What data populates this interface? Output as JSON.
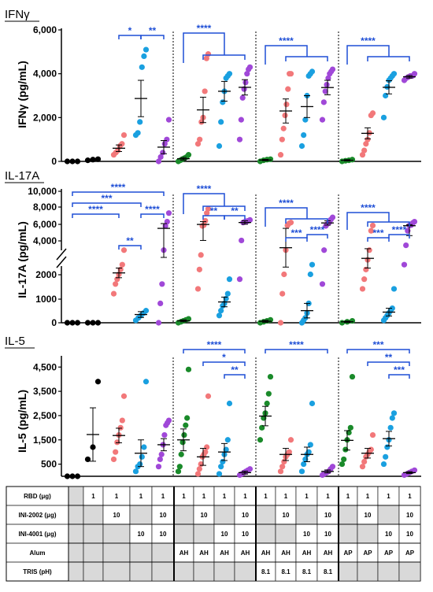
{
  "colors": {
    "black": "#000000",
    "pink": "#f2787a",
    "blue": "#1aa0e0",
    "purple": "#a048d8",
    "green": "#1a8a2a",
    "sig": "#1f4fd6",
    "shade": "#d9d9d9"
  },
  "chart_data": [
    {
      "type": "scatter",
      "title": "IFNγ",
      "ylabel": "IFNγ (pg/mL)",
      "yticks": [
        "0",
        "2,000",
        "4,000",
        "6,000"
      ],
      "ylim": [
        0,
        6000
      ],
      "groups": [
        {
          "color": "black",
          "values": [
            0,
            0,
            0
          ]
        },
        {
          "color": "black",
          "values": [
            50,
            80,
            100
          ]
        },
        {
          "color": "pink",
          "values": [
            300,
            400,
            500,
            700,
            800,
            1200
          ]
        },
        {
          "color": "blue",
          "values": [
            1200,
            1300,
            1800,
            4300,
            4800,
            5100
          ]
        },
        {
          "color": "purple",
          "values": [
            0,
            200,
            400,
            800,
            1000,
            1900
          ]
        },
        {
          "color": "green",
          "values": [
            0,
            50,
            100,
            150,
            200,
            300
          ]
        },
        {
          "color": "pink",
          "values": [
            800,
            1000,
            1800,
            2000,
            3200,
            4700,
            4900
          ]
        },
        {
          "color": "blue",
          "values": [
            700,
            1800,
            2700,
            3200,
            3800,
            3900,
            4000
          ]
        },
        {
          "color": "purple",
          "values": [
            1000,
            1900,
            2900,
            3300,
            3600,
            4000,
            4200,
            4300
          ]
        },
        {
          "color": "green",
          "values": [
            0,
            50,
            80,
            100
          ]
        },
        {
          "color": "pink",
          "values": [
            300,
            1000,
            1500,
            2100,
            2600,
            3300,
            4000,
            4000
          ]
        },
        {
          "color": "blue",
          "values": [
            700,
            1200,
            1900,
            3000,
            3900,
            4000,
            4100
          ]
        },
        {
          "color": "purple",
          "values": [
            1900,
            2700,
            3200,
            3500,
            3800,
            4000,
            4100,
            4200
          ]
        },
        {
          "color": "green",
          "values": [
            0,
            30,
            50,
            80
          ]
        },
        {
          "color": "pink",
          "values": [
            300,
            500,
            800,
            1000,
            1300,
            2100,
            2200
          ]
        },
        {
          "color": "blue",
          "values": [
            2000,
            3000,
            3400,
            3700,
            3800,
            3900,
            4000
          ]
        },
        {
          "color": "purple",
          "values": [
            3700,
            3800,
            3850,
            3900,
            3900,
            4000
          ]
        }
      ],
      "means": [
        0,
        70,
        600,
        2870,
        650,
        120,
        2350,
        3200,
        3380,
        60,
        2300,
        2500,
        3370,
        50,
        1280,
        3380,
        3860
      ],
      "sems": [
        0,
        30,
        150,
        830,
        300,
        60,
        580,
        450,
        350,
        30,
        550,
        500,
        330,
        30,
        250,
        300,
        60
      ],
      "brackets": [
        {
          "from": 2,
          "to": 3,
          "label": "*"
        },
        {
          "from": 3,
          "to": 4,
          "label": "**"
        },
        {
          "from": 5,
          "to": [
            6,
            7,
            8
          ],
          "label": "****"
        },
        {
          "from": 9,
          "to": [
            10,
            11,
            12
          ],
          "label": "****"
        },
        {
          "from": 13,
          "to": [
            14,
            15,
            16
          ],
          "label": "****"
        }
      ]
    },
    {
      "type": "scatter",
      "title": "IL-17A",
      "ylabel": "IL-17A (pg/mL)",
      "yticks": [
        "0",
        "1000",
        "2000",
        "4,000",
        "6,000",
        "8,000",
        "10,000"
      ],
      "axis_break": true,
      "groups": [
        {
          "color": "black",
          "values": [
            0,
            0,
            0
          ]
        },
        {
          "color": "black",
          "values": [
            0,
            0,
            0
          ]
        },
        {
          "color": "pink",
          "values": [
            600,
            800,
            900,
            1000,
            1100,
            1200,
            1500
          ]
        },
        {
          "color": "blue",
          "values": [
            50,
            100,
            150,
            200,
            250
          ]
        },
        {
          "color": "purple",
          "values": [
            0,
            400,
            800,
            1500,
            2000,
            3000,
            5000
          ]
        },
        {
          "color": "green",
          "values": [
            0,
            20,
            40,
            60,
            80
          ]
        },
        {
          "color": "pink",
          "values": [
            700,
            1100,
            1400,
            2000,
            2200,
            3200,
            5000,
            6000
          ]
        },
        {
          "color": "blue",
          "values": [
            150,
            250,
            350,
            400,
            500,
            600,
            900
          ]
        },
        {
          "color": "purple",
          "values": [
            900,
            1700,
            2800,
            3000,
            3100,
            3200,
            3400
          ]
        },
        {
          "color": "green",
          "values": [
            0,
            20,
            40,
            60
          ]
        },
        {
          "color": "pink",
          "values": [
            0,
            600,
            1000,
            1500,
            2100,
            2600,
            2800
          ]
        },
        {
          "color": "blue",
          "values": [
            0,
            50,
            100,
            200,
            400,
            1000,
            1200
          ]
        },
        {
          "color": "purple",
          "values": [
            800,
            1500,
            2000,
            2500,
            2800,
            3500,
            4000
          ]
        },
        {
          "color": "green",
          "values": [
            0,
            20,
            40
          ]
        },
        {
          "color": "pink",
          "values": [
            700,
            900,
            1100,
            1300,
            1500,
            1900,
            2100
          ]
        },
        {
          "color": "blue",
          "values": [
            50,
            100,
            150,
            200,
            250,
            300,
            700
          ]
        },
        {
          "color": "purple",
          "values": [
            1200,
            1600,
            1900,
            2100,
            2200,
            2700,
            3000
          ]
        }
      ],
      "means": [
        0,
        0,
        1030,
        170,
        1950,
        40,
        2350,
        430,
        2800,
        30,
        1550,
        250,
        2700,
        20,
        1330,
        220,
        2050
      ],
      "sems": [
        0,
        0,
        100,
        60,
        600,
        20,
        650,
        100,
        400,
        20,
        400,
        150,
        500,
        15,
        200,
        80,
        250
      ],
      "brackets": [
        {
          "from": 0,
          "to": 2,
          "label": "****"
        },
        {
          "from": 0,
          "to": 3,
          "label": "***"
        },
        {
          "from": 0,
          "to": 4,
          "label": "****"
        },
        {
          "from": 2,
          "to": 3,
          "label": "**"
        },
        {
          "from": 3,
          "to": 4,
          "label": "****"
        },
        {
          "from": 5,
          "to": [
            6,
            7,
            8
          ],
          "label": "****"
        },
        {
          "from": 6,
          "to": 7,
          "label": "**"
        },
        {
          "from": 7,
          "to": 8,
          "label": "**"
        },
        {
          "from": 9,
          "to": [
            10,
            11,
            12
          ],
          "label": "****"
        },
        {
          "from": 10,
          "to": 11,
          "label": "***"
        },
        {
          "from": 11,
          "to": 12,
          "label": "****"
        },
        {
          "from": 13,
          "to": [
            14,
            15,
            16
          ],
          "label": "****"
        },
        {
          "from": 14,
          "to": 15,
          "label": "***"
        },
        {
          "from": 15,
          "to": 16,
          "label": "****"
        }
      ]
    },
    {
      "type": "scatter",
      "title": "IL-5",
      "ylabel": "IL-5 (pg/mL)",
      "yticks": [
        "500",
        "1,500",
        "2,500",
        "3,500",
        "4,500"
      ],
      "ylim": [
        0,
        4800
      ],
      "groups": [
        {
          "color": "black",
          "values": [
            0,
            0,
            0
          ]
        },
        {
          "color": "black",
          "values": [
            700,
            1200,
            3900
          ]
        },
        {
          "color": "pink",
          "values": [
            700,
            1000,
            1400,
            1700,
            2000,
            2300,
            3300
          ]
        },
        {
          "color": "blue",
          "values": [
            200,
            400,
            500,
            800,
            1200,
            3900
          ]
        },
        {
          "color": "purple",
          "values": [
            400,
            700,
            900,
            1300,
            1700,
            2100,
            2200,
            2300
          ]
        },
        {
          "color": "green",
          "values": [
            200,
            400,
            900,
            1400,
            1700,
            2100,
            2400,
            4400
          ]
        },
        {
          "color": "pink",
          "values": [
            100,
            300,
            500,
            800,
            900,
            1000,
            1200,
            3300
          ]
        },
        {
          "color": "blue",
          "values": [
            100,
            400,
            600,
            900,
            1100,
            1500,
            3000
          ]
        },
        {
          "color": "purple",
          "values": [
            50,
            100,
            150,
            200,
            250,
            300
          ]
        },
        {
          "color": "green",
          "values": [
            1500,
            2000,
            2400,
            2600,
            3000,
            3400,
            4100
          ]
        },
        {
          "color": "pink",
          "values": [
            200,
            400,
            600,
            800,
            900,
            1000,
            1500
          ]
        },
        {
          "color": "blue",
          "values": [
            200,
            500,
            700,
            900,
            1000,
            1300,
            3000
          ]
        },
        {
          "color": "purple",
          "values": [
            50,
            100,
            150,
            200,
            300,
            400
          ]
        },
        {
          "color": "green",
          "values": [
            500,
            700,
            1100,
            1500,
            1800,
            2000,
            4100
          ]
        },
        {
          "color": "pink",
          "values": [
            400,
            600,
            800,
            900,
            1000,
            1100,
            1700
          ]
        },
        {
          "color": "blue",
          "values": [
            500,
            800,
            1200,
            1500,
            2000,
            2400,
            2600
          ]
        },
        {
          "color": "purple",
          "values": [
            50,
            100,
            150,
            200,
            250
          ]
        }
      ],
      "means": [
        0,
        1720,
        1680,
        950,
        1300,
        1500,
        800,
        1000,
        150,
        2480,
        900,
        900,
        200,
        1480,
        950,
        1550,
        150
      ],
      "sems": [
        0,
        1100,
        300,
        550,
        250,
        450,
        350,
        350,
        60,
        400,
        250,
        300,
        60,
        400,
        200,
        300,
        40
      ],
      "brackets": [
        {
          "from": 5,
          "to": 8,
          "label": "****"
        },
        {
          "from": 6,
          "to": 8,
          "label": "*"
        },
        {
          "from": 7,
          "to": 8,
          "label": "**"
        },
        {
          "from": 9,
          "to": 12,
          "label": "****"
        },
        {
          "from": 13,
          "to": 16,
          "label": "***"
        },
        {
          "from": 14,
          "to": 16,
          "label": "**"
        },
        {
          "from": 15,
          "to": 16,
          "label": "***"
        }
      ]
    }
  ],
  "table": {
    "rows": [
      {
        "label": "RBD (μg)",
        "cells": [
          "",
          "1",
          "1",
          "1",
          "1",
          "1",
          "1",
          "1",
          "1",
          "1",
          "1",
          "1",
          "1",
          "1",
          "1",
          "1",
          "1"
        ]
      },
      {
        "label": "INI-2002 (μg)",
        "cells": [
          "",
          "",
          "10",
          "",
          "10",
          "",
          "10",
          "",
          "10",
          "",
          "10",
          "",
          "10",
          "",
          "10",
          "",
          "10"
        ]
      },
      {
        "label": "INI-4001 (μg)",
        "cells": [
          "",
          "",
          "",
          "10",
          "10",
          "",
          "",
          "10",
          "10",
          "",
          "",
          "10",
          "10",
          "",
          "",
          "10",
          "10"
        ]
      },
      {
        "label": "Alum",
        "cells": [
          "",
          "",
          "",
          "",
          "",
          "AH",
          "AH",
          "AH",
          "AH",
          "AH",
          "AH",
          "AH",
          "AH",
          "AP",
          "AP",
          "AP",
          "AP"
        ]
      },
      {
        "label": "TRIS (pH)",
        "cells": [
          "",
          "",
          "",
          "",
          "",
          "",
          "",
          "",
          "",
          "8.1",
          "8.1",
          "8.1",
          "8.1",
          "",
          "",
          "",
          ""
        ]
      }
    ]
  }
}
